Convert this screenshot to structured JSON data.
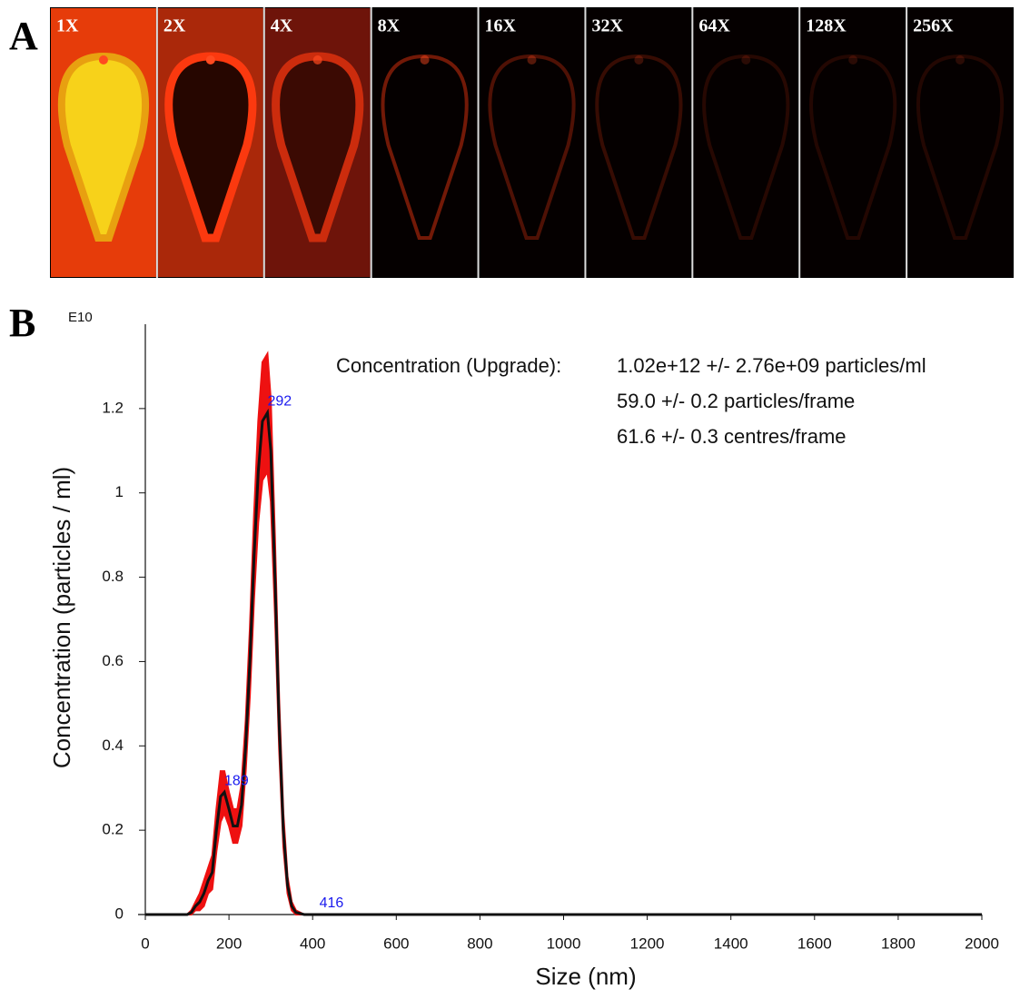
{
  "panel_a": {
    "label": "A",
    "images": [
      "1X",
      "2X",
      "4X",
      "8X",
      "16X",
      "32X",
      "64X",
      "128X",
      "256X"
    ]
  },
  "panel_b": {
    "label": "B"
  },
  "chart_data": {
    "type": "line",
    "multiplier": "E10",
    "x_label": "Size (nm)",
    "y_label": "Concentration (particles / ml)",
    "x": [
      0,
      100,
      110,
      120,
      130,
      140,
      150,
      160,
      170,
      180,
      189,
      200,
      210,
      220,
      230,
      240,
      250,
      260,
      270,
      280,
      292,
      300,
      310,
      320,
      330,
      340,
      350,
      360,
      380,
      2000
    ],
    "values": [
      0,
      0,
      0.005,
      0.02,
      0.03,
      0.05,
      0.08,
      0.1,
      0.2,
      0.28,
      0.29,
      0.25,
      0.21,
      0.21,
      0.26,
      0.4,
      0.6,
      0.85,
      1.05,
      1.17,
      1.19,
      1.1,
      0.8,
      0.45,
      0.2,
      0.07,
      0.02,
      0.005,
      0,
      0
    ],
    "errors": [
      0,
      0,
      0.005,
      0.01,
      0.02,
      0.03,
      0.03,
      0.04,
      0.05,
      0.06,
      0.05,
      0.04,
      0.04,
      0.04,
      0.05,
      0.06,
      0.08,
      0.1,
      0.12,
      0.14,
      0.14,
      0.12,
      0.09,
      0.06,
      0.04,
      0.02,
      0.01,
      0.005,
      0,
      0
    ],
    "color": "#111111",
    "error_color": "#ee1111",
    "peak_labels": [
      292,
      189,
      416
    ],
    "peak_label_color": "#1a1aee",
    "annotations": [
      "Concentration (Upgrade):",
      "1.02e+12 +/- 2.76e+09 particles/ml",
      "59.0 +/- 0.2 particles/frame",
      "61.6 +/- 0.3 centres/frame"
    ],
    "xlim": [
      0,
      2000
    ],
    "xticks": [
      0,
      200,
      400,
      600,
      800,
      1000,
      1200,
      1400,
      1600,
      1800,
      2000
    ],
    "ylim": [
      0,
      1.4
    ],
    "yticks": [
      0,
      0.2,
      0.4,
      0.6,
      0.8,
      1.0,
      1.2
    ]
  }
}
